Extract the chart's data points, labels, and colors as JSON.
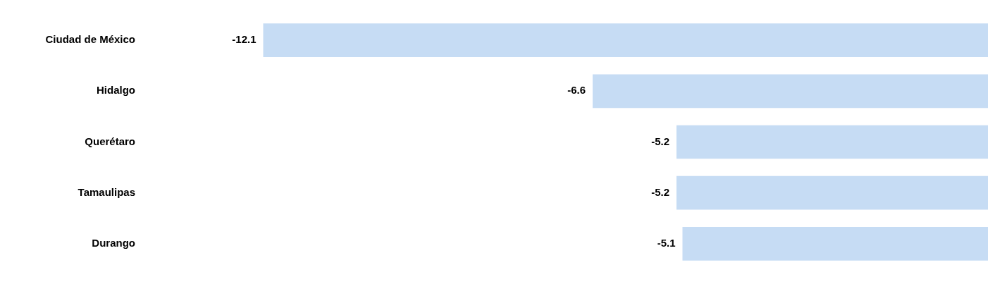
{
  "chart_data": {
    "type": "bar",
    "orientation": "horizontal",
    "categories": [
      "Ciudad de México",
      "Hidalgo",
      "Querétaro",
      "Tamaulipas",
      "Durango"
    ],
    "values": [
      -12.1,
      -6.6,
      -5.2,
      -5.2,
      -5.1
    ],
    "color": "#c6dcf4",
    "data_labels": true,
    "legend": false
  }
}
